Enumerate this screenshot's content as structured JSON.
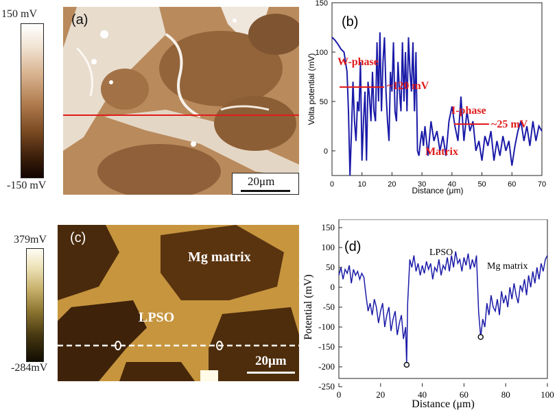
{
  "panel_a": {
    "tag": "(a)",
    "colorbar": {
      "max": "150 mV",
      "min": "-150 mV"
    },
    "scale_bar": "20μm"
  },
  "panel_c": {
    "tag": "(c)",
    "colorbar": {
      "max": "379mV",
      "min": "-284mV"
    },
    "labels": {
      "matrix": "Mg matrix",
      "lpso": "LPSO"
    },
    "scale_bar": "20μm"
  },
  "chart_data": [
    {
      "id": "b",
      "type": "line",
      "tag": "(b)",
      "xlabel": "Distance (μm)",
      "ylabel": "Volta potential (mV)",
      "xlim": [
        0,
        70
      ],
      "ylim": [
        -25,
        150
      ],
      "xticks": [
        0,
        10,
        20,
        30,
        40,
        50,
        60,
        70
      ],
      "yticks": [
        0,
        50,
        100,
        150
      ],
      "grid": false,
      "annotations": {
        "w_phase": "W-phase",
        "w_value": "~120 mV",
        "i_phase": "I-phase",
        "i_value": "~25 mV",
        "matrix": "Matrix"
      },
      "series": [
        {
          "color": "#1a1aa8",
          "x": [
            0,
            1,
            2,
            3,
            4,
            5,
            5.5,
            6,
            6.5,
            7,
            7.5,
            8,
            8.5,
            9,
            9.5,
            10,
            10.5,
            11,
            11.5,
            12,
            12.5,
            13,
            13.5,
            14,
            14.5,
            15,
            15.5,
            16,
            16.5,
            17,
            17.5,
            18,
            18.5,
            19,
            19.5,
            20,
            20.5,
            21,
            21.5,
            22,
            22.5,
            23,
            23.5,
            24,
            24.5,
            25,
            25.5,
            26,
            26.5,
            27,
            27.5,
            28,
            28.5,
            29,
            29.5,
            30,
            30.5,
            31,
            32,
            33,
            34,
            35,
            36,
            37,
            38,
            39,
            40,
            41,
            42,
            43,
            44,
            45,
            46,
            47,
            48,
            49,
            50,
            51,
            52,
            53,
            54,
            55,
            56,
            57,
            58,
            59,
            60,
            61,
            62,
            63,
            64,
            65,
            66,
            67,
            68,
            69,
            70
          ],
          "y": [
            115,
            112,
            108,
            103,
            100,
            80,
            40,
            -25,
            20,
            70,
            30,
            10,
            50,
            40,
            90,
            -10,
            30,
            60,
            -10,
            70,
            55,
            30,
            80,
            40,
            30,
            110,
            50,
            120,
            40,
            90,
            115,
            60,
            30,
            10,
            80,
            60,
            110,
            40,
            30,
            90,
            60,
            40,
            110,
            50,
            100,
            40,
            115,
            80,
            60,
            110,
            40,
            100,
            0,
            -5,
            10,
            20,
            5,
            25,
            -5,
            30,
            10,
            20,
            0,
            15,
            -5,
            30,
            45,
            25,
            10,
            55,
            10,
            40,
            20,
            30,
            0,
            10,
            -10,
            15,
            5,
            20,
            -10,
            10,
            -5,
            15,
            0,
            10,
            -15,
            5,
            20,
            30,
            10,
            25,
            5,
            30,
            10,
            25,
            20
          ]
        }
      ]
    },
    {
      "id": "d",
      "type": "line",
      "tag": "(d)",
      "xlabel": "Distance (μm)",
      "ylabel": "Potential (mV)",
      "xlim": [
        0,
        100
      ],
      "ylim": [
        -250,
        150
      ],
      "xticks": [
        0,
        20,
        40,
        60,
        80,
        100
      ],
      "yticks": [
        -250,
        -200,
        -150,
        -100,
        -50,
        0,
        50,
        100,
        150
      ],
      "grid": false,
      "annotations": {
        "lpso": "LPSO",
        "matrix": "Mg matrix"
      },
      "markers": [
        {
          "x": 32.5,
          "y": -195
        },
        {
          "x": 68,
          "y": -125
        }
      ],
      "series": [
        {
          "color": "#1a1aa8",
          "x": [
            0,
            1,
            2,
            3,
            4,
            5,
            6,
            7,
            8,
            9,
            10,
            11,
            12,
            13,
            14,
            15,
            16,
            17,
            18,
            19,
            20,
            21,
            22,
            23,
            24,
            25,
            26,
            27,
            28,
            29,
            30,
            31,
            32,
            32.5,
            33,
            34,
            35,
            36,
            37,
            38,
            39,
            40,
            41,
            42,
            43,
            44,
            45,
            46,
            47,
            48,
            49,
            50,
            51,
            52,
            53,
            54,
            55,
            56,
            57,
            58,
            59,
            60,
            61,
            62,
            63,
            64,
            65,
            66,
            67,
            68,
            69,
            70,
            71,
            72,
            73,
            74,
            75,
            76,
            77,
            78,
            79,
            80,
            81,
            82,
            83,
            84,
            85,
            86,
            87,
            88,
            89,
            90,
            91,
            92,
            93,
            94,
            95,
            96,
            97,
            98,
            99,
            100
          ],
          "y": [
            30,
            50,
            20,
            45,
            35,
            55,
            10,
            45,
            30,
            40,
            20,
            35,
            25,
            -20,
            -60,
            -40,
            -70,
            -30,
            -50,
            -90,
            -60,
            -40,
            -100,
            -70,
            -50,
            -110,
            -80,
            -60,
            -120,
            -90,
            -70,
            -130,
            -100,
            -195,
            -40,
            70,
            50,
            80,
            40,
            60,
            30,
            55,
            35,
            65,
            45,
            60,
            20,
            50,
            40,
            70,
            30,
            55,
            45,
            75,
            40,
            80,
            50,
            90,
            60,
            70,
            40,
            75,
            55,
            85,
            45,
            70,
            50,
            80,
            -60,
            -125,
            -80,
            -100,
            -40,
            -70,
            -20,
            -50,
            -60,
            -30,
            -70,
            -10,
            -40,
            -20,
            -50,
            0,
            -30,
            10,
            -20,
            -40,
            5,
            -10,
            20,
            -20,
            30,
            0,
            40,
            10,
            50,
            20,
            60,
            40,
            70,
            80
          ]
        }
      ]
    }
  ]
}
